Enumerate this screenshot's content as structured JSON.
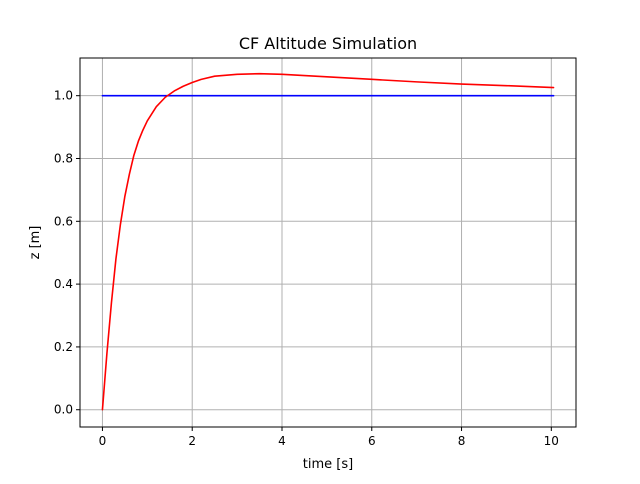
{
  "chart_data": {
    "type": "line",
    "title": "CF Altitude Simulation",
    "xlabel": "time [s]",
    "ylabel": "z [m]",
    "xlim": [
      -0.5,
      10.55
    ],
    "ylim": [
      -0.055,
      1.12
    ],
    "grid": true,
    "legend": "none",
    "xticks": [
      0,
      2,
      4,
      6,
      8,
      10
    ],
    "yticks": [
      0.0,
      0.2,
      0.4,
      0.6,
      0.8,
      1.0
    ],
    "xtick_labels": [
      "0",
      "2",
      "4",
      "6",
      "8",
      "10"
    ],
    "ytick_labels": [
      "0.0",
      "0.2",
      "0.4",
      "0.6",
      "0.8",
      "1.0"
    ],
    "series": [
      {
        "color": "#0000ff",
        "x": [
          0,
          10.05
        ],
        "y": [
          1.0,
          1.0
        ]
      },
      {
        "color": "#ff0000",
        "x": [
          0,
          0.1,
          0.2,
          0.3,
          0.4,
          0.5,
          0.6,
          0.7,
          0.8,
          0.9,
          1.0,
          1.2,
          1.4,
          1.6,
          1.8,
          2.0,
          2.2,
          2.5,
          3.0,
          3.5,
          4.0,
          4.5,
          5.0,
          6.0,
          7.0,
          8.0,
          9.0,
          10.05
        ],
        "y": [
          0.0,
          0.18,
          0.34,
          0.48,
          0.59,
          0.68,
          0.75,
          0.81,
          0.855,
          0.89,
          0.92,
          0.965,
          0.995,
          1.015,
          1.03,
          1.042,
          1.052,
          1.062,
          1.068,
          1.07,
          1.068,
          1.064,
          1.06,
          1.052,
          1.044,
          1.037,
          1.032,
          1.026
        ]
      }
    ]
  }
}
